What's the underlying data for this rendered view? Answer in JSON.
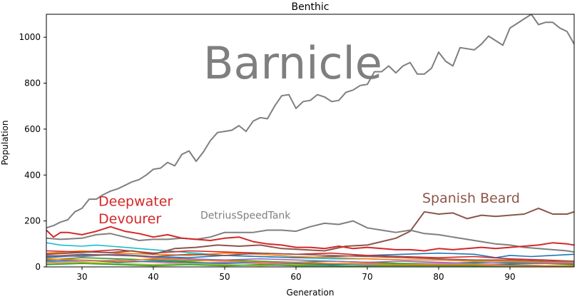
{
  "chart_data": {
    "type": "line",
    "title": "Benthic",
    "xlabel": "Generation",
    "ylabel": "Population",
    "xlim": [
      25,
      99
    ],
    "ylim": [
      0,
      1100
    ],
    "x_ticks": [
      30,
      40,
      50,
      60,
      70,
      80,
      90
    ],
    "y_ticks": [
      0,
      200,
      400,
      600,
      800,
      1000
    ],
    "grid": false,
    "legend": "none",
    "annotations": [
      {
        "text": "Barnicle",
        "x": 47,
        "y": 820,
        "color": "#7f7f7f",
        "size": "large"
      },
      {
        "text": "Deepwater",
        "x": 32.3,
        "y": 265,
        "color": "#d62728",
        "size": "medium"
      },
      {
        "text": "Devourer",
        "x": 32.3,
        "y": 190,
        "color": "#d62728",
        "size": "medium"
      },
      {
        "text": "Spanish Beard",
        "x": 77.7,
        "y": 280,
        "color": "#8c564b",
        "size": "medium"
      },
      {
        "text": "DetriusSpeedTank",
        "x": 46.6,
        "y": 210,
        "color": "#7f7f7f",
        "size": "small"
      }
    ],
    "series": [
      {
        "color": "#7f7f7f",
        "label_ref": "Barnicle",
        "x": [
          25,
          26,
          27,
          28,
          29,
          30,
          31,
          32,
          33,
          34,
          35,
          36,
          37,
          38,
          39,
          40,
          41,
          42,
          43,
          44,
          45,
          46,
          47,
          48,
          49,
          50,
          51,
          52,
          53,
          54,
          55,
          56,
          57,
          58,
          59,
          60,
          61,
          62,
          63,
          64,
          65,
          66,
          67,
          68,
          69,
          70,
          71,
          72,
          73,
          74,
          75,
          76,
          77,
          78,
          79,
          80,
          81,
          82,
          83,
          84,
          85,
          86,
          87,
          88,
          89,
          90,
          91,
          92,
          93,
          94,
          95,
          96,
          97,
          98,
          99
        ],
        "values": [
          170,
          180,
          195,
          205,
          240,
          255,
          295,
          295,
          315,
          330,
          340,
          355,
          370,
          380,
          400,
          425,
          430,
          455,
          440,
          490,
          505,
          460,
          500,
          550,
          585,
          590,
          595,
          615,
          590,
          635,
          650,
          645,
          700,
          745,
          750,
          690,
          720,
          725,
          750,
          740,
          720,
          725,
          760,
          770,
          790,
          795,
          850,
          850,
          875,
          845,
          875,
          890,
          840,
          840,
          865,
          935,
          895,
          875,
          955,
          950,
          945,
          970,
          1005,
          985,
          965,
          1040,
          1060,
          1080,
          1100,
          1055,
          1065,
          1065,
          1040,
          1025,
          970
        ]
      },
      {
        "color": "#8c564b",
        "label_ref": "Spanish Beard",
        "x": [
          25,
          28,
          31,
          34,
          37,
          40,
          43,
          46,
          49,
          52,
          55,
          58,
          61,
          64,
          67,
          70,
          72,
          74,
          76,
          78,
          80,
          82,
          84,
          86,
          88,
          90,
          92,
          94,
          96,
          98,
          99
        ],
        "values": [
          55,
          60,
          65,
          62,
          70,
          55,
          80,
          85,
          95,
          90,
          95,
          80,
          75,
          70,
          90,
          95,
          110,
          125,
          155,
          240,
          230,
          235,
          210,
          225,
          220,
          225,
          230,
          255,
          230,
          230,
          240
        ]
      },
      {
        "color": "#7f7f7f",
        "label_ref": "DetriusSpeedTank",
        "x": [
          25,
          27,
          30,
          32,
          34,
          36,
          38,
          40,
          42,
          44,
          46,
          48,
          50,
          52,
          54,
          56,
          58,
          60,
          62,
          64,
          66,
          68,
          70,
          72,
          74,
          76,
          78,
          80,
          82,
          84,
          86,
          88,
          90,
          92,
          94,
          96,
          98,
          99
        ],
        "values": [
          125,
          120,
          125,
          140,
          145,
          130,
          115,
          120,
          120,
          125,
          120,
          130,
          150,
          150,
          150,
          160,
          160,
          155,
          175,
          190,
          185,
          200,
          170,
          160,
          150,
          160,
          145,
          140,
          130,
          120,
          110,
          100,
          95,
          85,
          80,
          75,
          70,
          65
        ]
      },
      {
        "color": "#d62728",
        "label_ref": "Deepwater Devourer",
        "x": [
          25,
          26,
          27,
          28,
          30,
          32,
          34,
          36,
          38,
          40,
          42,
          44,
          46,
          48,
          50,
          52,
          54,
          56,
          58,
          60,
          62,
          64,
          66,
          68,
          70,
          72,
          74,
          76,
          78,
          80,
          82,
          84,
          86,
          88,
          90,
          92,
          94,
          96,
          98,
          99
        ],
        "values": [
          160,
          130,
          150,
          150,
          140,
          155,
          175,
          155,
          145,
          130,
          140,
          125,
          120,
          115,
          125,
          130,
          110,
          100,
          95,
          85,
          85,
          80,
          90,
          80,
          85,
          80,
          75,
          75,
          70,
          80,
          75,
          80,
          85,
          80,
          85,
          90,
          95,
          105,
          100,
          95
        ]
      },
      {
        "color": "#17becf",
        "x": [
          25,
          27,
          30,
          32,
          34,
          36,
          38,
          40,
          42,
          44,
          46,
          48,
          50,
          55,
          60,
          65,
          70,
          75,
          80,
          85,
          90,
          95,
          99
        ],
        "values": [
          105,
          95,
          90,
          95,
          90,
          85,
          80,
          75,
          70,
          65,
          60,
          55,
          50,
          45,
          40,
          35,
          35,
          30,
          30,
          25,
          25,
          20,
          20
        ]
      },
      {
        "color": "#1f77b4",
        "x": [
          25,
          30,
          35,
          40,
          45,
          50,
          55,
          60,
          65,
          70,
          75,
          80,
          85,
          88,
          90,
          93,
          96,
          99
        ],
        "values": [
          40,
          50,
          55,
          45,
          40,
          50,
          45,
          40,
          45,
          50,
          55,
          60,
          55,
          40,
          50,
          45,
          50,
          55
        ]
      },
      {
        "color": "#ff7f0e",
        "x": [
          25,
          30,
          35,
          40,
          45,
          50,
          55,
          60,
          65,
          70,
          75,
          80,
          85,
          90,
          95,
          99
        ],
        "values": [
          60,
          70,
          60,
          55,
          50,
          60,
          55,
          45,
          40,
          35,
          30,
          30,
          25,
          25,
          20,
          20
        ]
      },
      {
        "color": "#2ca02c",
        "x": [
          25,
          30,
          35,
          40,
          45,
          50,
          55,
          60,
          65,
          70,
          75,
          80,
          85,
          90,
          95,
          99
        ],
        "values": [
          30,
          40,
          35,
          30,
          25,
          30,
          25,
          20,
          25,
          20,
          15,
          15,
          20,
          15,
          15,
          10
        ]
      },
      {
        "color": "#9467bd",
        "x": [
          25,
          30,
          35,
          40,
          45,
          50,
          55,
          60,
          65,
          70,
          75,
          80,
          85,
          90,
          95,
          99
        ],
        "values": [
          50,
          45,
          55,
          40,
          35,
          30,
          35,
          30,
          25,
          20,
          25,
          20,
          15,
          20,
          15,
          15
        ]
      },
      {
        "color": "#e377c2",
        "x": [
          25,
          30,
          35,
          40,
          45,
          50,
          55,
          60,
          65,
          70,
          75,
          80,
          85,
          90,
          95,
          99
        ],
        "values": [
          20,
          25,
          30,
          20,
          15,
          20,
          15,
          10,
          15,
          10,
          10,
          15,
          10,
          10,
          5,
          5
        ]
      },
      {
        "color": "#bcbd22",
        "x": [
          25,
          30,
          35,
          40,
          45,
          50,
          55,
          60,
          65,
          70,
          75,
          80,
          85,
          90,
          95,
          99
        ],
        "values": [
          15,
          20,
          15,
          10,
          15,
          10,
          5,
          10,
          5,
          5,
          10,
          5,
          5,
          5,
          5,
          5
        ]
      },
      {
        "color": "#d62728",
        "x": [
          25,
          30,
          35,
          40,
          45,
          50,
          55,
          60,
          65,
          70,
          75,
          80,
          85,
          90,
          95,
          99
        ],
        "values": [
          70,
          65,
          75,
          60,
          70,
          65,
          60,
          55,
          60,
          50,
          45,
          40,
          45,
          35,
          30,
          25
        ]
      },
      {
        "color": "#8c564b",
        "x": [
          25,
          30,
          35,
          40,
          45,
          50,
          55,
          60,
          65,
          70,
          75,
          80,
          85,
          90,
          95,
          99
        ],
        "values": [
          45,
          55,
          50,
          45,
          55,
          50,
          60,
          55,
          50,
          45,
          40,
          35,
          30,
          30,
          25,
          25
        ]
      },
      {
        "color": "#1f77b4",
        "x": [
          25,
          30,
          35,
          40,
          45,
          50,
          55,
          60,
          65,
          70,
          75,
          80,
          85,
          90,
          95,
          99
        ],
        "values": [
          25,
          30,
          20,
          25,
          20,
          15,
          20,
          15,
          10,
          15,
          10,
          10,
          5,
          10,
          5,
          5
        ]
      },
      {
        "color": "#2ca02c",
        "x": [
          25,
          30,
          35,
          40,
          45,
          50,
          55,
          60,
          65,
          70,
          75,
          80,
          85,
          90,
          95,
          99
        ],
        "values": [
          10,
          15,
          10,
          5,
          10,
          5,
          10,
          5,
          5,
          5,
          5,
          5,
          5,
          5,
          5,
          5
        ]
      },
      {
        "color": "#ff7f0e",
        "x": [
          25,
          30,
          35,
          40,
          45,
          50,
          55,
          60,
          65,
          70,
          75,
          80,
          85,
          90,
          95,
          99
        ],
        "values": [
          35,
          30,
          25,
          35,
          30,
          25,
          20,
          20,
          15,
          15,
          10,
          10,
          10,
          5,
          5,
          5
        ]
      }
    ]
  }
}
